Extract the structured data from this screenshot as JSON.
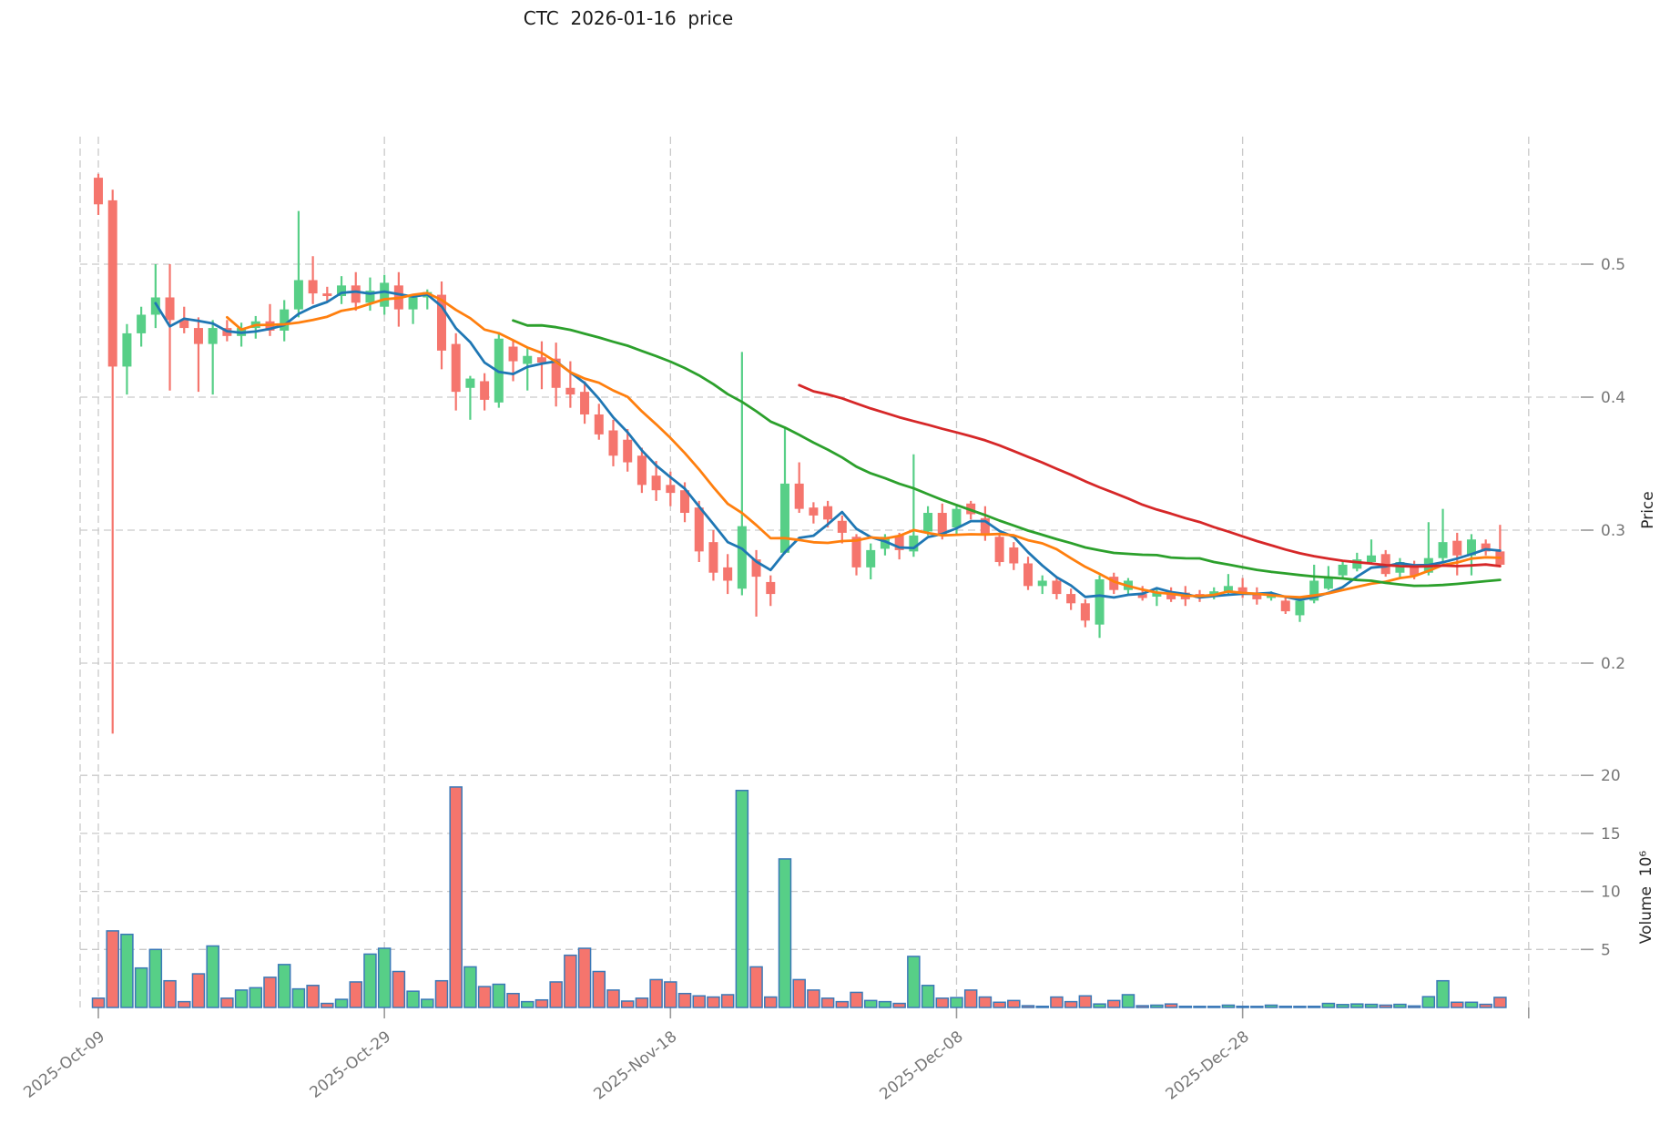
{
  "title": "CTC  2026-01-16  price",
  "price_axis": {
    "label": "Price",
    "ticks": [
      0.5,
      0.4,
      0.3,
      0.2
    ]
  },
  "volume_axis": {
    "label": "Volume  10⁶",
    "ticks": [
      20,
      15,
      10,
      5
    ],
    "unit": "10^6"
  },
  "chart_data": {
    "type": "candlestick",
    "title": "CTC  2026-01-16  price",
    "xlabel": "",
    "ylabel": "Price",
    "ylabel2": "Volume 10^6",
    "x_tick_labels": [
      "2025-Oct-09",
      "2025-Oct-29",
      "2025-Nov-18",
      "2025-Dec-08",
      "2025-Dec-28",
      ""
    ],
    "x_tick_days": [
      0,
      20,
      40,
      60,
      80,
      100
    ],
    "price_ticks": [
      0.5,
      0.4,
      0.3,
      0.2
    ],
    "volume_ticks_millions": [
      20,
      15,
      10,
      5
    ],
    "grid": true,
    "legend_position": "none",
    "colors": {
      "up": "#57cf87",
      "down": "#f5756d",
      "volume_edge": "#3b79b8",
      "sma5": "#1f77b4",
      "sma10": "#ff7f0e",
      "sma30": "#2ca02c",
      "sma50": "#d62728",
      "grid": "#c9c9c9",
      "tick_text": "#767676"
    },
    "sma_series": [
      {
        "name": "SMA5",
        "period": 5,
        "color_key": "sma5"
      },
      {
        "name": "SMA10",
        "period": 10,
        "color_key": "sma10"
      },
      {
        "name": "SMA30",
        "period": 30,
        "color_key": "sma30"
      },
      {
        "name": "SMA50",
        "period": 50,
        "color_key": "sma50"
      }
    ],
    "start_date": "2025-10-09",
    "volume_unit_millions": true,
    "ohlcv": [
      [
        0.565,
        0.568,
        0.537,
        0.545,
        0.8
      ],
      [
        0.548,
        0.556,
        0.147,
        0.423,
        6.6
      ],
      [
        0.423,
        0.455,
        0.402,
        0.448,
        6.3
      ],
      [
        0.448,
        0.468,
        0.438,
        0.462,
        3.4
      ],
      [
        0.462,
        0.5,
        0.452,
        0.475,
        5.0
      ],
      [
        0.475,
        0.5,
        0.405,
        0.458,
        2.3
      ],
      [
        0.458,
        0.468,
        0.448,
        0.452,
        0.5
      ],
      [
        0.452,
        0.46,
        0.404,
        0.44,
        2.9
      ],
      [
        0.44,
        0.458,
        0.402,
        0.452,
        5.3
      ],
      [
        0.452,
        0.458,
        0.442,
        0.446,
        0.8
      ],
      [
        0.446,
        0.456,
        0.438,
        0.452,
        1.5
      ],
      [
        0.452,
        0.461,
        0.444,
        0.457,
        1.7
      ],
      [
        0.457,
        0.47,
        0.446,
        0.45,
        2.6
      ],
      [
        0.45,
        0.473,
        0.442,
        0.466,
        3.7
      ],
      [
        0.466,
        0.54,
        0.46,
        0.488,
        1.6
      ],
      [
        0.488,
        0.506,
        0.47,
        0.478,
        1.9
      ],
      [
        0.478,
        0.483,
        0.471,
        0.476,
        0.35
      ],
      [
        0.476,
        0.491,
        0.47,
        0.484,
        0.7
      ],
      [
        0.484,
        0.494,
        0.465,
        0.471,
        2.2
      ],
      [
        0.471,
        0.49,
        0.465,
        0.48,
        4.6
      ],
      [
        0.468,
        0.492,
        0.462,
        0.486,
        5.1
      ],
      [
        0.484,
        0.494,
        0.453,
        0.466,
        3.1
      ],
      [
        0.466,
        0.476,
        0.455,
        0.475,
        1.4
      ],
      [
        0.475,
        0.481,
        0.466,
        0.479,
        0.7
      ],
      [
        0.477,
        0.487,
        0.421,
        0.435,
        2.3
      ],
      [
        0.44,
        0.448,
        0.39,
        0.404,
        19.0
      ],
      [
        0.407,
        0.416,
        0.383,
        0.414,
        3.5
      ],
      [
        0.412,
        0.418,
        0.39,
        0.398,
        1.8
      ],
      [
        0.396,
        0.449,
        0.392,
        0.444,
        2.0
      ],
      [
        0.438,
        0.443,
        0.412,
        0.427,
        1.2
      ],
      [
        0.425,
        0.438,
        0.405,
        0.431,
        0.5
      ],
      [
        0.43,
        0.442,
        0.406,
        0.426,
        0.65
      ],
      [
        0.429,
        0.441,
        0.393,
        0.407,
        2.2
      ],
      [
        0.407,
        0.427,
        0.392,
        0.402,
        4.5
      ],
      [
        0.404,
        0.412,
        0.38,
        0.387,
        5.1
      ],
      [
        0.387,
        0.395,
        0.368,
        0.372,
        3.1
      ],
      [
        0.375,
        0.383,
        0.348,
        0.356,
        1.5
      ],
      [
        0.368,
        0.376,
        0.344,
        0.351,
        0.55
      ],
      [
        0.356,
        0.362,
        0.328,
        0.334,
        0.8
      ],
      [
        0.341,
        0.352,
        0.322,
        0.33,
        2.4
      ],
      [
        0.334,
        0.344,
        0.318,
        0.328,
        2.2
      ],
      [
        0.33,
        0.336,
        0.306,
        0.313,
        1.2
      ],
      [
        0.317,
        0.322,
        0.276,
        0.284,
        1.0
      ],
      [
        0.291,
        0.3,
        0.262,
        0.268,
        0.9
      ],
      [
        0.272,
        0.282,
        0.252,
        0.262,
        1.1
      ],
      [
        0.256,
        0.434,
        0.251,
        0.303,
        18.7
      ],
      [
        0.278,
        0.285,
        0.235,
        0.265,
        3.5
      ],
      [
        0.261,
        0.266,
        0.243,
        0.252,
        0.9
      ],
      [
        0.283,
        0.377,
        0.282,
        0.335,
        12.8
      ],
      [
        0.335,
        0.351,
        0.313,
        0.316,
        2.4
      ],
      [
        0.317,
        0.321,
        0.305,
        0.311,
        1.5
      ],
      [
        0.318,
        0.322,
        0.302,
        0.308,
        0.8
      ],
      [
        0.307,
        0.311,
        0.29,
        0.298,
        0.5
      ],
      [
        0.295,
        0.297,
        0.266,
        0.272,
        1.3
      ],
      [
        0.272,
        0.29,
        0.263,
        0.285,
        0.6
      ],
      [
        0.286,
        0.297,
        0.281,
        0.295,
        0.5
      ],
      [
        0.296,
        0.298,
        0.278,
        0.285,
        0.35
      ],
      [
        0.284,
        0.357,
        0.28,
        0.296,
        4.4
      ],
      [
        0.299,
        0.318,
        0.296,
        0.313,
        1.9
      ],
      [
        0.313,
        0.32,
        0.293,
        0.297,
        0.8
      ],
      [
        0.302,
        0.318,
        0.297,
        0.316,
        0.85
      ],
      [
        0.32,
        0.322,
        0.308,
        0.312,
        1.5
      ],
      [
        0.309,
        0.318,
        0.292,
        0.296,
        0.9
      ],
      [
        0.295,
        0.297,
        0.273,
        0.276,
        0.45
      ],
      [
        0.287,
        0.291,
        0.27,
        0.275,
        0.6
      ],
      [
        0.275,
        0.28,
        0.255,
        0.258,
        0.15
      ],
      [
        0.258,
        0.266,
        0.252,
        0.262,
        0.1
      ],
      [
        0.262,
        0.265,
        0.248,
        0.252,
        0.9
      ],
      [
        0.252,
        0.256,
        0.24,
        0.245,
        0.5
      ],
      [
        0.245,
        0.248,
        0.227,
        0.232,
        1.0
      ],
      [
        0.229,
        0.266,
        0.219,
        0.263,
        0.3
      ],
      [
        0.265,
        0.268,
        0.252,
        0.255,
        0.6
      ],
      [
        0.255,
        0.264,
        0.251,
        0.262,
        1.1
      ],
      [
        0.252,
        0.258,
        0.247,
        0.249,
        0.15
      ],
      [
        0.25,
        0.256,
        0.243,
        0.253,
        0.2
      ],
      [
        0.252,
        0.257,
        0.246,
        0.248,
        0.3
      ],
      [
        0.253,
        0.258,
        0.243,
        0.248,
        0.1
      ],
      [
        0.252,
        0.255,
        0.246,
        0.249,
        0.08
      ],
      [
        0.251,
        0.257,
        0.248,
        0.254,
        0.05
      ],
      [
        0.254,
        0.267,
        0.252,
        0.258,
        0.2
      ],
      [
        0.257,
        0.264,
        0.249,
        0.252,
        0.1
      ],
      [
        0.252,
        0.257,
        0.244,
        0.248,
        0.06
      ],
      [
        0.249,
        0.254,
        0.247,
        0.252,
        0.2
      ],
      [
        0.247,
        0.251,
        0.237,
        0.239,
        0.1
      ],
      [
        0.236,
        0.249,
        0.231,
        0.247,
        0.08
      ],
      [
        0.247,
        0.274,
        0.245,
        0.262,
        0.1
      ],
      [
        0.256,
        0.273,
        0.255,
        0.264,
        0.35
      ],
      [
        0.266,
        0.277,
        0.263,
        0.274,
        0.25
      ],
      [
        0.271,
        0.283,
        0.269,
        0.278,
        0.3
      ],
      [
        0.276,
        0.293,
        0.275,
        0.281,
        0.27
      ],
      [
        0.282,
        0.285,
        0.265,
        0.267,
        0.2
      ],
      [
        0.268,
        0.279,
        0.264,
        0.276,
        0.27
      ],
      [
        0.274,
        0.277,
        0.263,
        0.266,
        0.13
      ],
      [
        0.268,
        0.306,
        0.266,
        0.279,
        0.93
      ],
      [
        0.279,
        0.316,
        0.276,
        0.291,
        2.3
      ],
      [
        0.292,
        0.298,
        0.266,
        0.281,
        0.45
      ],
      [
        0.281,
        0.297,
        0.266,
        0.293,
        0.45
      ],
      [
        0.29,
        0.293,
        0.281,
        0.284,
        0.27
      ],
      [
        0.284,
        0.304,
        0.272,
        0.274,
        0.87
      ]
    ]
  }
}
